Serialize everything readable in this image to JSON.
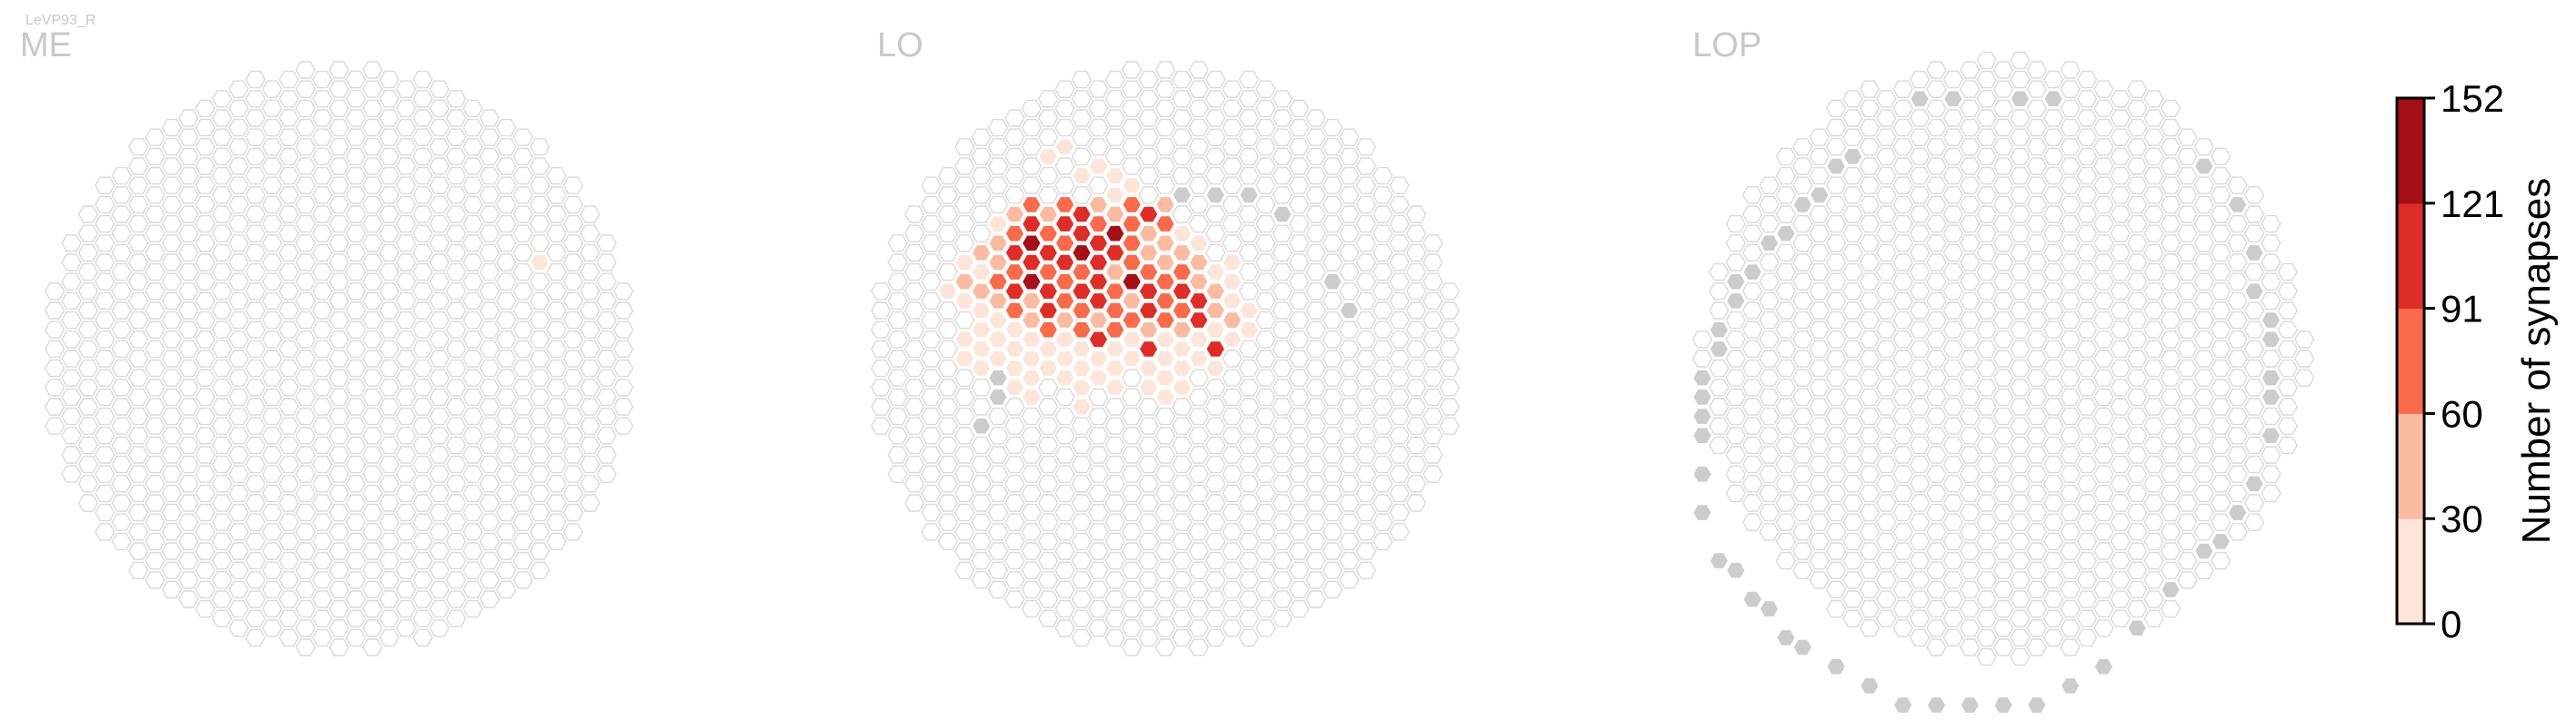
{
  "chart_data": {
    "type": "heatmap",
    "cell_type": "LeVP93_R",
    "panels": [
      {
        "title": "ME",
        "cells": [
          {
            "col": 12,
            "row": -5,
            "bin": 1
          }
        ]
      },
      {
        "title": "LO",
        "grey": [
          [
            -11,
            3
          ],
          [
            -10,
            2
          ],
          [
            -10,
            1
          ],
          [
            -9,
            -2
          ],
          [
            -6,
            -5
          ],
          [
            -5,
            -6
          ],
          [
            -3,
            -7
          ],
          [
            -1,
            -8
          ],
          [
            1,
            -9
          ],
          [
            3,
            -9
          ],
          [
            5,
            -9
          ],
          [
            7,
            -8
          ],
          [
            10,
            -4
          ],
          [
            11,
            -3
          ]
        ],
        "cells": [
          {
            "col": -7,
            "row": -11,
            "bin": 1
          },
          {
            "col": -6,
            "row": -11,
            "bin": 1
          },
          {
            "col": -5,
            "row": -10,
            "bin": 1
          },
          {
            "col": -4,
            "row": -10,
            "bin": 1
          },
          {
            "col": -3,
            "row": -10,
            "bin": 1
          },
          {
            "col": -3,
            "row": -9,
            "bin": 1
          },
          {
            "col": -2,
            "row": -9,
            "bin": 1
          },
          {
            "col": -9,
            "row": -8,
            "bin": 2
          },
          {
            "col": -8,
            "row": -8,
            "bin": 3
          },
          {
            "col": -7,
            "row": -8,
            "bin": 2
          },
          {
            "col": -6,
            "row": -8,
            "bin": 3
          },
          {
            "col": -5,
            "row": -8,
            "bin": 4
          },
          {
            "col": -4,
            "row": -8,
            "bin": 2
          },
          {
            "col": -3,
            "row": -8,
            "bin": 2
          },
          {
            "col": -2,
            "row": -8,
            "bin": 3
          },
          {
            "col": -1,
            "row": -8,
            "bin": 4
          },
          {
            "col": 0,
            "row": -8,
            "bin": 2
          },
          {
            "col": -10,
            "row": -7,
            "bin": 1
          },
          {
            "col": -9,
            "row": -7,
            "bin": 3
          },
          {
            "col": -8,
            "row": -7,
            "bin": 4
          },
          {
            "col": -7,
            "row": -7,
            "bin": 3
          },
          {
            "col": -6,
            "row": -7,
            "bin": 4
          },
          {
            "col": -5,
            "row": -7,
            "bin": 4
          },
          {
            "col": -4,
            "row": -7,
            "bin": 3
          },
          {
            "col": -3,
            "row": -7,
            "bin": 5
          },
          {
            "col": -2,
            "row": -7,
            "bin": 3
          },
          {
            "col": -1,
            "row": -7,
            "bin": 2
          },
          {
            "col": 0,
            "row": -7,
            "bin": 3
          },
          {
            "col": 1,
            "row": -7,
            "bin": 1
          },
          {
            "col": -11,
            "row": -6,
            "bin": 2
          },
          {
            "col": -10,
            "row": -6,
            "bin": 2
          },
          {
            "col": -9,
            "row": -6,
            "bin": 4
          },
          {
            "col": -8,
            "row": -6,
            "bin": 5
          },
          {
            "col": -7,
            "row": -6,
            "bin": 4
          },
          {
            "col": -6,
            "row": -6,
            "bin": 3
          },
          {
            "col": -5,
            "row": -6,
            "bin": 5
          },
          {
            "col": -4,
            "row": -6,
            "bin": 4
          },
          {
            "col": -3,
            "row": -6,
            "bin": 4
          },
          {
            "col": -2,
            "row": -6,
            "bin": 3
          },
          {
            "col": -1,
            "row": -6,
            "bin": 2
          },
          {
            "col": 0,
            "row": -6,
            "bin": 2
          },
          {
            "col": 1,
            "row": -6,
            "bin": 2
          },
          {
            "col": 2,
            "row": -6,
            "bin": 1
          },
          {
            "col": -12,
            "row": -5,
            "bin": 1
          },
          {
            "col": -11,
            "row": -5,
            "bin": 1
          },
          {
            "col": -10,
            "row": -5,
            "bin": 2
          },
          {
            "col": -9,
            "row": -5,
            "bin": 3
          },
          {
            "col": -8,
            "row": -5,
            "bin": 4
          },
          {
            "col": -7,
            "row": -5,
            "bin": 3
          },
          {
            "col": -6,
            "row": -5,
            "bin": 4
          },
          {
            "col": -5,
            "row": -5,
            "bin": 3
          },
          {
            "col": -4,
            "row": -5,
            "bin": 4
          },
          {
            "col": -3,
            "row": -5,
            "bin": 2
          },
          {
            "col": -2,
            "row": -5,
            "bin": 3
          },
          {
            "col": -1,
            "row": -5,
            "bin": 3
          },
          {
            "col": 0,
            "row": -5,
            "bin": 2
          },
          {
            "col": 1,
            "row": -5,
            "bin": 3
          },
          {
            "col": 2,
            "row": -5,
            "bin": 2
          },
          {
            "col": 3,
            "row": -5,
            "bin": 1
          },
          {
            "col": 4,
            "row": -5,
            "bin": 1
          },
          {
            "col": -13,
            "row": -4,
            "bin": 1
          },
          {
            "col": -12,
            "row": -4,
            "bin": 2
          },
          {
            "col": -11,
            "row": -4,
            "bin": 2
          },
          {
            "col": -10,
            "row": -4,
            "bin": 3
          },
          {
            "col": -9,
            "row": -4,
            "bin": 4
          },
          {
            "col": -8,
            "row": -4,
            "bin": 5
          },
          {
            "col": -7,
            "row": -4,
            "bin": 4
          },
          {
            "col": -6,
            "row": -4,
            "bin": 3
          },
          {
            "col": -5,
            "row": -4,
            "bin": 4
          },
          {
            "col": -4,
            "row": -4,
            "bin": 4
          },
          {
            "col": -3,
            "row": -4,
            "bin": 3
          },
          {
            "col": -2,
            "row": -4,
            "bin": 5
          },
          {
            "col": -1,
            "row": -4,
            "bin": 4
          },
          {
            "col": 0,
            "row": -4,
            "bin": 3
          },
          {
            "col": 1,
            "row": -4,
            "bin": 4
          },
          {
            "col": 2,
            "row": -4,
            "bin": 2
          },
          {
            "col": 3,
            "row": -4,
            "bin": 2
          },
          {
            "col": 4,
            "row": -4,
            "bin": 1
          },
          {
            "col": -12,
            "row": -3,
            "bin": 1
          },
          {
            "col": -11,
            "row": -3,
            "bin": 1
          },
          {
            "col": -10,
            "row": -3,
            "bin": 2
          },
          {
            "col": -9,
            "row": -3,
            "bin": 3
          },
          {
            "col": -8,
            "row": -3,
            "bin": 2
          },
          {
            "col": -7,
            "row": -3,
            "bin": 4
          },
          {
            "col": -6,
            "row": -3,
            "bin": 3
          },
          {
            "col": -5,
            "row": -3,
            "bin": 3
          },
          {
            "col": -4,
            "row": -3,
            "bin": 4
          },
          {
            "col": -3,
            "row": -3,
            "bin": 3
          },
          {
            "col": -2,
            "row": -3,
            "bin": 2
          },
          {
            "col": -1,
            "row": -3,
            "bin": 4
          },
          {
            "col": 0,
            "row": -3,
            "bin": 3
          },
          {
            "col": 1,
            "row": -3,
            "bin": 3
          },
          {
            "col": 2,
            "row": -3,
            "bin": 4
          },
          {
            "col": 3,
            "row": -3,
            "bin": 2
          },
          {
            "col": 4,
            "row": -3,
            "bin": 1
          },
          {
            "col": 5,
            "row": -3,
            "bin": 1
          },
          {
            "col": -11,
            "row": -2,
            "bin": 1
          },
          {
            "col": -10,
            "row": -2,
            "bin": 1
          },
          {
            "col": -9,
            "row": -2,
            "bin": 1
          },
          {
            "col": -8,
            "row": -2,
            "bin": 2
          },
          {
            "col": -7,
            "row": -2,
            "bin": 3
          },
          {
            "col": -6,
            "row": -2,
            "bin": 2
          },
          {
            "col": -5,
            "row": -2,
            "bin": 3
          },
          {
            "col": -4,
            "row": -2,
            "bin": 2
          },
          {
            "col": -3,
            "row": -2,
            "bin": 3
          },
          {
            "col": -2,
            "row": -2,
            "bin": 3
          },
          {
            "col": -1,
            "row": -2,
            "bin": 2
          },
          {
            "col": 0,
            "row": -2,
            "bin": 3
          },
          {
            "col": 1,
            "row": -2,
            "bin": 2
          },
          {
            "col": 2,
            "row": -2,
            "bin": 4
          },
          {
            "col": 3,
            "row": -2,
            "bin": 1
          },
          {
            "col": 4,
            "row": -2,
            "bin": 2
          },
          {
            "col": 5,
            "row": -2,
            "bin": 1
          },
          {
            "col": -12,
            "row": -1,
            "bin": 1
          },
          {
            "col": -11,
            "row": -1,
            "bin": 1
          },
          {
            "col": -10,
            "row": -1,
            "bin": 1
          },
          {
            "col": -9,
            "row": -1,
            "bin": 1
          },
          {
            "col": -8,
            "row": -1,
            "bin": 1
          },
          {
            "col": -7,
            "row": -1,
            "bin": 1
          },
          {
            "col": -6,
            "row": -1,
            "bin": 1
          },
          {
            "col": -5,
            "row": -1,
            "bin": 1
          },
          {
            "col": -4,
            "row": -1,
            "bin": 4
          },
          {
            "col": -3,
            "row": -1,
            "bin": 1
          },
          {
            "col": -2,
            "row": -1,
            "bin": 1
          },
          {
            "col": -1,
            "row": -1,
            "bin": 4
          },
          {
            "col": 0,
            "row": -1,
            "bin": 1
          },
          {
            "col": 1,
            "row": -1,
            "bin": 1
          },
          {
            "col": 2,
            "row": -1,
            "bin": 1
          },
          {
            "col": 3,
            "row": -1,
            "bin": 4
          },
          {
            "col": 4,
            "row": -1,
            "bin": 1
          },
          {
            "col": -12,
            "row": 0,
            "bin": 1
          },
          {
            "col": -11,
            "row": 0,
            "bin": 1
          },
          {
            "col": -10,
            "row": 0,
            "bin": 1
          },
          {
            "col": -9,
            "row": 0,
            "bin": 1
          },
          {
            "col": -8,
            "row": 0,
            "bin": 1
          },
          {
            "col": -7,
            "row": 0,
            "bin": 1
          },
          {
            "col": -6,
            "row": 0,
            "bin": 1
          },
          {
            "col": -5,
            "row": 0,
            "bin": 1
          },
          {
            "col": -4,
            "row": 0,
            "bin": 1
          },
          {
            "col": -3,
            "row": 0,
            "bin": 1
          },
          {
            "col": -2,
            "row": 0,
            "bin": 1
          },
          {
            "col": -1,
            "row": 0,
            "bin": 1
          },
          {
            "col": 0,
            "row": 0,
            "bin": 1
          },
          {
            "col": 1,
            "row": 0,
            "bin": 1
          },
          {
            "col": 2,
            "row": 0,
            "bin": 1
          },
          {
            "col": 3,
            "row": 0,
            "bin": 1
          },
          {
            "col": -9,
            "row": 1,
            "bin": 1
          },
          {
            "col": -8,
            "row": 1,
            "bin": 1
          },
          {
            "col": -6,
            "row": 1,
            "bin": 1
          },
          {
            "col": -5,
            "row": 1,
            "bin": 1
          },
          {
            "col": -4,
            "row": 1,
            "bin": 1
          },
          {
            "col": -3,
            "row": 1,
            "bin": 1
          },
          {
            "col": -1,
            "row": 1,
            "bin": 1
          },
          {
            "col": 0,
            "row": 1,
            "bin": 1
          },
          {
            "col": 1,
            "row": 1,
            "bin": 1
          },
          {
            "col": -8,
            "row": 2,
            "bin": 1
          },
          {
            "col": -5,
            "row": 2,
            "bin": 1
          },
          {
            "col": 0,
            "row": 2,
            "bin": 1
          }
        ]
      },
      {
        "title": "LOP",
        "grey": [
          [
            -5,
            -14
          ],
          [
            -3,
            -14
          ],
          [
            1,
            -14
          ],
          [
            3,
            -14
          ],
          [
            -9,
            -11
          ],
          [
            -10,
            -10
          ],
          [
            -11,
            -9
          ],
          [
            -12,
            -8
          ],
          [
            -13,
            -7
          ],
          [
            -14,
            -6
          ],
          [
            -15,
            -5
          ],
          [
            -16,
            -4
          ],
          [
            -16,
            -3
          ],
          [
            -17,
            -2
          ],
          [
            -17,
            -1
          ],
          [
            -18,
            1
          ],
          [
            -18,
            2
          ],
          [
            -18,
            3
          ],
          [
            -18,
            4
          ],
          [
            -18,
            6
          ],
          [
            -18,
            8
          ],
          [
            -17,
            10
          ],
          [
            -16,
            11
          ],
          [
            -15,
            12
          ],
          [
            -14,
            13
          ],
          [
            -13,
            14
          ],
          [
            -12,
            15
          ],
          [
            -10,
            16
          ],
          [
            -8,
            17
          ],
          [
            -6,
            18
          ],
          [
            -4,
            18
          ],
          [
            -2,
            18
          ],
          [
            0,
            18
          ],
          [
            2,
            18
          ],
          [
            4,
            17
          ],
          [
            6,
            16
          ],
          [
            8,
            14
          ],
          [
            10,
            12
          ],
          [
            12,
            10
          ],
          [
            13,
            9
          ],
          [
            14,
            8
          ],
          [
            15,
            6
          ],
          [
            16,
            4
          ],
          [
            16,
            2
          ],
          [
            16,
            1
          ],
          [
            16,
            -1
          ],
          [
            16,
            -2
          ],
          [
            15,
            -4
          ],
          [
            15,
            -6
          ],
          [
            14,
            -8
          ],
          [
            12,
            -10
          ]
        ]
      }
    ],
    "colorbar": {
      "label": "Number of synapses",
      "ticks": [
        "0",
        "30",
        "60",
        "91",
        "121",
        "152"
      ],
      "range": [
        0,
        152
      ],
      "colors": [
        "#fee5d9",
        "#fcbba1",
        "#fb6a4a",
        "#de2d26",
        "#a50f15"
      ]
    }
  }
}
